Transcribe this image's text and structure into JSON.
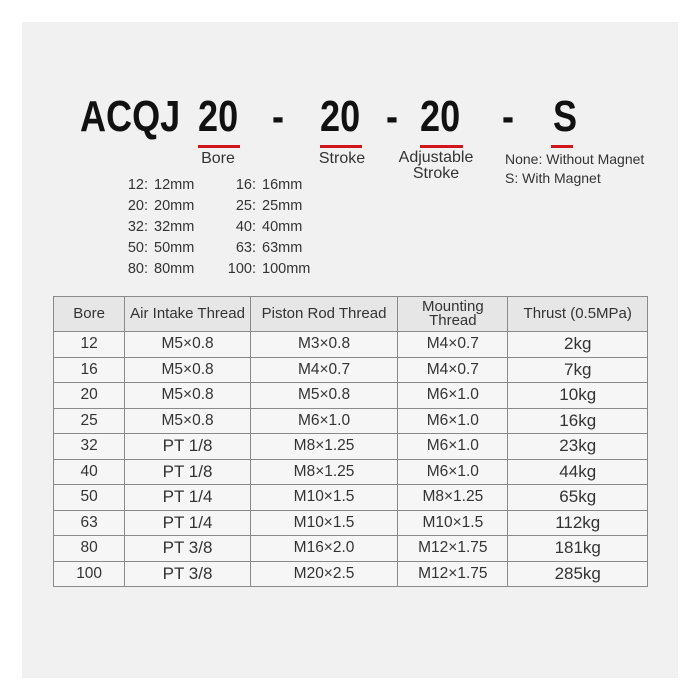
{
  "model": {
    "prefix": "ACQJ",
    "parts": [
      {
        "code": "20",
        "label": "Bore"
      },
      {
        "code": "20",
        "label": "Stroke"
      },
      {
        "code": "20",
        "label": "Adjustable Stroke"
      },
      {
        "code": "S",
        "label_lines": [
          "None: Without Magnet",
          "S: With Magnet"
        ]
      }
    ],
    "separator": "-",
    "accent_color": "#d0161b"
  },
  "bore_sizes": [
    [
      "12:",
      "12mm",
      "16:",
      "16mm"
    ],
    [
      "20:",
      "20mm",
      "25:",
      "25mm"
    ],
    [
      "32:",
      "32mm",
      "40:",
      "40mm"
    ],
    [
      "50:",
      "50mm",
      "63:",
      "63mm"
    ],
    [
      "80:",
      "80mm",
      "100:",
      "100mm"
    ]
  ],
  "table": {
    "headers": [
      "Bore",
      "Air Intake Thread",
      "Piston Rod Thread",
      "Mounting Thread",
      "Thrust (0.5MPa)"
    ],
    "rows": [
      [
        "12",
        "M5×0.8",
        "M3×0.8",
        "M4×0.7",
        "2kg"
      ],
      [
        "16",
        "M5×0.8",
        "M4×0.7",
        "M4×0.7",
        "7kg"
      ],
      [
        "20",
        "M5×0.8",
        "M5×0.8",
        "M6×1.0",
        "10kg"
      ],
      [
        "25",
        "M5×0.8",
        "M6×1.0",
        "M6×1.0",
        "16kg"
      ],
      [
        "32",
        "PT 1/8",
        "M8×1.25",
        "M6×1.0",
        "23kg"
      ],
      [
        "40",
        "PT 1/8",
        "M8×1.25",
        "M6×1.0",
        "44kg"
      ],
      [
        "50",
        "PT 1/4",
        "M10×1.5",
        "M8×1.25",
        "65kg"
      ],
      [
        "63",
        "PT 1/4",
        "M10×1.5",
        "M10×1.5",
        "112kg"
      ],
      [
        "80",
        "PT 3/8",
        "M16×2.0",
        "M12×1.75",
        "181kg"
      ],
      [
        "100",
        "PT 3/8",
        "M20×2.5",
        "M12×1.75",
        "285kg"
      ]
    ]
  }
}
